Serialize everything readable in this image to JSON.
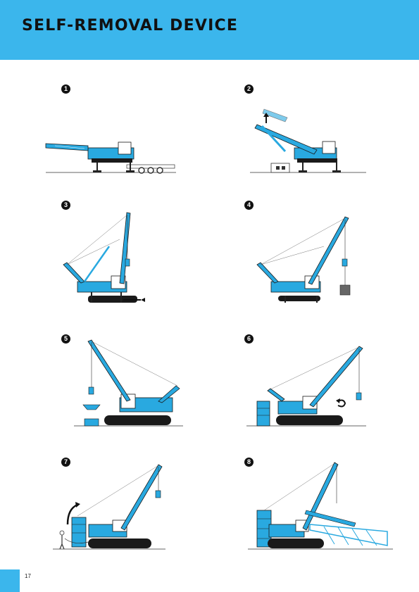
{
  "header": {
    "title": "SELF-REMOVAL DEVICE"
  },
  "steps": [
    {
      "number": "1"
    },
    {
      "number": "2"
    },
    {
      "number": "3"
    },
    {
      "number": "4"
    },
    {
      "number": "5"
    },
    {
      "number": "6"
    },
    {
      "number": "7"
    },
    {
      "number": "8"
    }
  ],
  "footer": {
    "page_number": "17"
  },
  "colors": {
    "accent": "#3bb6ec",
    "crane_body": "#29a9e0",
    "outline": "#1a1a1a"
  }
}
